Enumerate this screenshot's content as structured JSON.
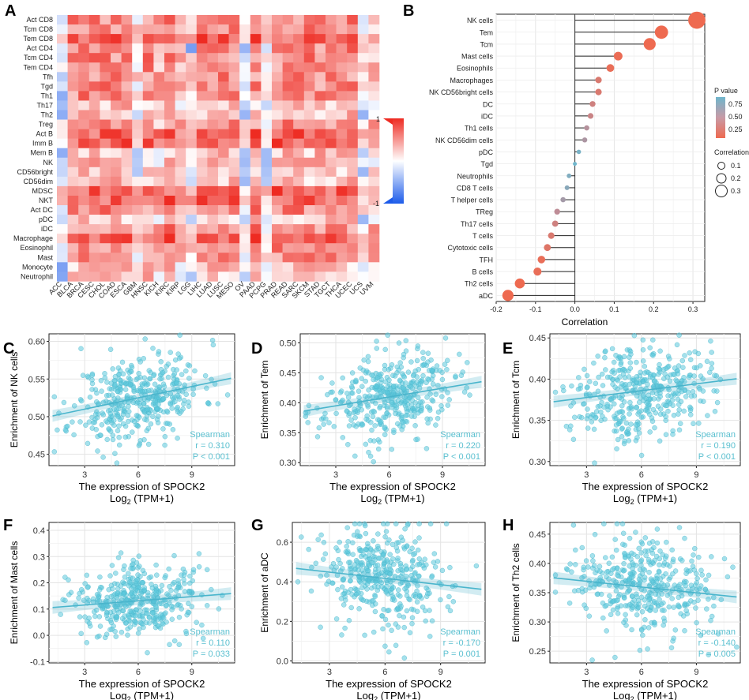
{
  "panels": {
    "A": "A",
    "B": "B",
    "C": "C",
    "D": "D",
    "E": "E",
    "F": "F",
    "G": "G",
    "H": "H"
  },
  "colors": {
    "positive": "#ee2b22",
    "negative": "#1c5bea",
    "neutral": "#ffffff",
    "scatter": "#5bc8dc",
    "regline": "#4ab5cc",
    "p_high": "#6fb6cc",
    "p_low": "#ee6a50"
  },
  "chart_data": [
    {
      "id": "A",
      "type": "heatmap",
      "rows": [
        "Act CD8",
        "Tcm CD8",
        "Tem CD8",
        "Act CD4",
        "Tcm CD4",
        "Tem CD4",
        "Tfh",
        "Tgd",
        "Th1",
        "Th17",
        "Th2",
        "Treg",
        "Act B",
        "Imm B",
        "Mem B",
        "NK",
        "CD56bright",
        "CD56dim",
        "MDSC",
        "NKT",
        "Act DC",
        "pDC",
        "iDC",
        "Macrophage",
        "Eosinophil",
        "Mast",
        "Monocyte",
        "Neutrophil"
      ],
      "columns": [
        "ACC",
        "BLCA",
        "BRCA",
        "CESC",
        "CHOL",
        "COAD",
        "ESCA",
        "GBM",
        "HNSC",
        "KICH",
        "KIRC",
        "KIRP",
        "LGG",
        "LIHC",
        "LUAD",
        "LUSC",
        "MESO",
        "OV",
        "PAAD",
        "PCPG",
        "PRAD",
        "READ",
        "SARC",
        "SKCM",
        "STAD",
        "TGCT",
        "THCA",
        "UCEC",
        "UCS",
        "UVM"
      ],
      "colorbar_labels": [
        "1",
        "-1"
      ],
      "range": [
        -1,
        1
      ]
    },
    {
      "id": "B",
      "type": "scatter",
      "subtype": "lollipop",
      "categories": [
        "NK cells",
        "Tem",
        "Tcm",
        "Mast cells",
        "Eosinophils",
        "Macrophages",
        "NK CD56bright cells",
        "DC",
        "iDC",
        "Th1 cells",
        "NK CD56dim cells",
        "pDC",
        "Tgd",
        "Neutrophils",
        "CD8 T cells",
        "T helper cells",
        "TReg",
        "Th17 cells",
        "T cells",
        "Cytotoxic cells",
        "TFH",
        "B cells",
        "Th2 cells",
        "aDC"
      ],
      "values": [
        0.31,
        0.22,
        0.19,
        0.11,
        0.09,
        0.06,
        0.06,
        0.045,
        0.04,
        0.03,
        0.025,
        0.01,
        0.0,
        -0.015,
        -0.02,
        -0.03,
        -0.045,
        -0.05,
        -0.06,
        -0.07,
        -0.085,
        -0.095,
        -0.14,
        -0.17
      ],
      "pvalues": [
        0.0,
        0.0,
        0.0,
        0.03,
        0.05,
        0.2,
        0.2,
        0.3,
        0.35,
        0.5,
        0.55,
        0.85,
        0.95,
        0.8,
        0.75,
        0.6,
        0.45,
        0.3,
        0.2,
        0.15,
        0.05,
        0.05,
        0.0,
        0.0
      ],
      "xlabel": "Correlation",
      "xticks": [
        "-0.2",
        "-0.1",
        "0.0",
        "0.1",
        "0.2",
        "0.3"
      ],
      "xlim": [
        -0.2,
        0.33
      ],
      "legend": {
        "pvalue_title": "P value",
        "pvalue_ticks": [
          "0.75",
          "0.50",
          "0.25"
        ],
        "corr_title": "Correlation",
        "corr_ticks": [
          "0.1",
          "0.2",
          "0.3"
        ]
      }
    },
    {
      "id": "C",
      "type": "scatter",
      "ylabel": "Enrichment of NK cells",
      "xlabel": "The expression of SPOCK2",
      "xlabel2_main": "Log",
      "xlabel2_sub": "2",
      "xlabel2_tail": " (TPM+1)",
      "xticks": [
        "3",
        "6",
        "9"
      ],
      "yticks": [
        "0.45",
        "0.50",
        "0.55",
        "0.60"
      ],
      "ylim": [
        0.435,
        0.61
      ],
      "xlim": [
        1,
        11.4
      ],
      "reg_y": [
        0.5,
        0.552
      ],
      "stats": [
        "Spearman",
        "r = 0.310",
        "P < 0.001"
      ],
      "n": 400,
      "seed": 11,
      "ymean": 0.52,
      "ysd": 0.028
    },
    {
      "id": "D",
      "type": "scatter",
      "ylabel": "Enrichment of Tem",
      "xlabel": "The expression of SPOCK2",
      "xlabel2_main": "Log",
      "xlabel2_sub": "2",
      "xlabel2_tail": " (TPM+1)",
      "xticks": [
        "3",
        "6",
        "9"
      ],
      "yticks": [
        "0.30",
        "0.35",
        "0.40",
        "0.45",
        "0.50"
      ],
      "ylim": [
        0.295,
        0.515
      ],
      "xlim": [
        1,
        11.4
      ],
      "reg_y": [
        0.385,
        0.436
      ],
      "stats": [
        "Spearman",
        "r = 0.220",
        "P < 0.001"
      ],
      "n": 400,
      "seed": 23,
      "ymean": 0.41,
      "ysd": 0.035
    },
    {
      "id": "E",
      "type": "scatter",
      "ylabel": "Enrichment of Tcm",
      "xlabel": "The expression of SPOCK2",
      "xlabel2_main": "Log",
      "xlabel2_sub": "2",
      "xlabel2_tail": " (TPM+1)",
      "xticks": [
        "3",
        "6",
        "9"
      ],
      "yticks": [
        "0.30",
        "0.35",
        "0.40",
        "0.45"
      ],
      "ylim": [
        0.295,
        0.455
      ],
      "xlim": [
        1,
        11.4
      ],
      "reg_y": [
        0.372,
        0.401
      ],
      "stats": [
        "Spearman",
        "r = 0.190",
        "P < 0.001"
      ],
      "n": 400,
      "seed": 37,
      "ymean": 0.385,
      "ysd": 0.028
    },
    {
      "id": "F",
      "type": "scatter",
      "ylabel": "Enrichment of Mast cells",
      "xlabel": "The expression of SPOCK2",
      "xlabel2_main": "Log",
      "xlabel2_sub": "2",
      "xlabel2_tail": " (TPM+1)",
      "xticks": [
        "3",
        "6",
        "9"
      ],
      "yticks": [
        "-0.1",
        "0.0",
        "0.1",
        "0.2",
        "0.3",
        "0.4"
      ],
      "ylim": [
        -0.105,
        0.43
      ],
      "xlim": [
        1,
        11.4
      ],
      "reg_y": [
        0.105,
        0.16
      ],
      "stats": [
        "Spearman",
        "r = 0.110",
        "P = 0.033"
      ],
      "n": 400,
      "seed": 41,
      "ymean": 0.13,
      "ysd": 0.07
    },
    {
      "id": "G",
      "type": "scatter",
      "ylabel": "Enrichment of aDC",
      "xlabel": "The expression of SPOCK2",
      "xlabel2_main": "Log",
      "xlabel2_sub": "2",
      "xlabel2_tail": " (TPM+1)",
      "xticks": [
        "3",
        "6",
        "9"
      ],
      "yticks": [
        "0.0",
        "0.2",
        "0.4",
        "0.6"
      ],
      "ylim": [
        -0.01,
        0.7
      ],
      "xlim": [
        1,
        11.4
      ],
      "reg_y": [
        0.47,
        0.36
      ],
      "stats": [
        "Spearman",
        "r = -0.170",
        "P = 0.001"
      ],
      "n": 400,
      "seed": 53,
      "ymean": 0.42,
      "ysd": 0.13
    },
    {
      "id": "H",
      "type": "scatter",
      "ylabel": "Enrichment of Th2 cells",
      "xlabel": "The expression of SPOCK2",
      "xlabel2_main": "Log",
      "xlabel2_sub": "2",
      "xlabel2_tail": " (TPM+1)",
      "xticks": [
        "3",
        "6",
        "9"
      ],
      "yticks": [
        "0.25",
        "0.30",
        "0.35",
        "0.40",
        "0.45"
      ],
      "ylim": [
        0.23,
        0.47
      ],
      "xlim": [
        1,
        11.4
      ],
      "reg_y": [
        0.376,
        0.342
      ],
      "stats": [
        "Spearman",
        "r = -0.140",
        "P = 0.005"
      ],
      "n": 400,
      "seed": 67,
      "ymean": 0.365,
      "ysd": 0.04
    }
  ]
}
